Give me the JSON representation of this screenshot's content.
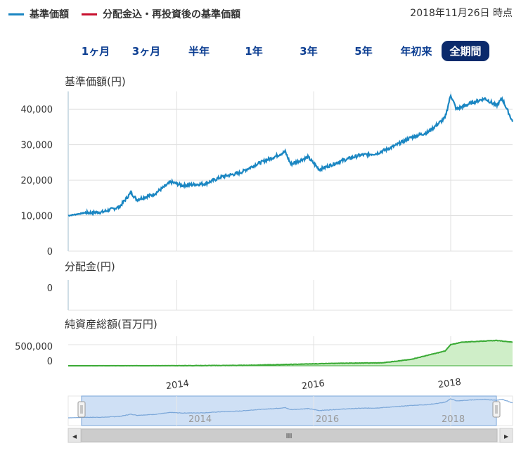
{
  "legend": {
    "series1": "基準価額",
    "series2": "分配金込・再投資後の基準価額",
    "colors": {
      "series1": "#1a86c2",
      "series2": "#c8102e"
    }
  },
  "as_of": "2018年11月26日 時点",
  "ranges": [
    {
      "label": "1ヶ月",
      "active": false
    },
    {
      "label": "3ヶ月",
      "active": false
    },
    {
      "label": "半年",
      "active": false
    },
    {
      "label": "1年",
      "active": false
    },
    {
      "label": "3年",
      "active": false
    },
    {
      "label": "5年",
      "active": false
    },
    {
      "label": "年初来",
      "active": false
    },
    {
      "label": "全期間",
      "active": true
    }
  ],
  "chart_data": [
    {
      "type": "line",
      "title": "基準価額(円)",
      "x_range": [
        "2012-06",
        "2018-11-26"
      ],
      "ylim": [
        0,
        45000
      ],
      "ytick_labels": [
        "0",
        "10,000",
        "20,000",
        "30,000",
        "40,000"
      ],
      "yticks": [
        0,
        10000,
        20000,
        30000,
        40000
      ],
      "x_gridlines": [
        "2014",
        "2016",
        "2018"
      ],
      "series": [
        {
          "name": "基準価額",
          "color": "#1a86c2",
          "points": [
            [
              "2012-06",
              10000
            ],
            [
              "2012-09",
              10800
            ],
            [
              "2012-12",
              11000
            ],
            [
              "2013-03",
              12500
            ],
            [
              "2013-05",
              16500
            ],
            [
              "2013-06",
              14500
            ],
            [
              "2013-09",
              16000
            ],
            [
              "2013-12",
              19500
            ],
            [
              "2014-02",
              18500
            ],
            [
              "2014-06",
              19000
            ],
            [
              "2014-09",
              21000
            ],
            [
              "2014-12",
              22000
            ],
            [
              "2015-03",
              24500
            ],
            [
              "2015-06",
              26500
            ],
            [
              "2015-08",
              28000
            ],
            [
              "2015-09",
              24500
            ],
            [
              "2015-12",
              26500
            ],
            [
              "2016-02",
              23000
            ],
            [
              "2016-06",
              25500
            ],
            [
              "2016-09",
              27000
            ],
            [
              "2016-12",
              27500
            ],
            [
              "2017-03",
              29500
            ],
            [
              "2017-06",
              32000
            ],
            [
              "2017-09",
              33500
            ],
            [
              "2017-12",
              37500
            ],
            [
              "2018-01",
              44000
            ],
            [
              "2018-02",
              40000
            ],
            [
              "2018-05",
              42000
            ],
            [
              "2018-07",
              43000
            ],
            [
              "2018-09",
              41000
            ],
            [
              "2018-10",
              43000
            ],
            [
              "2018-11-26",
              36500
            ]
          ]
        }
      ]
    },
    {
      "type": "line",
      "title": "分配金(円)",
      "ylim": [
        0,
        1
      ],
      "ytick_labels": [
        "0"
      ],
      "yticks": [
        0
      ],
      "series": [
        {
          "name": "分配金",
          "color": "#1a86c2",
          "points": []
        }
      ]
    },
    {
      "type": "area",
      "title": "純資産総額(百万円)",
      "ylim": [
        0,
        700000
      ],
      "ytick_labels": [
        "0",
        "500,000"
      ],
      "yticks": [
        0,
        500000
      ],
      "xtick_labels": [
        "2014",
        "2016",
        "2018"
      ],
      "series": [
        {
          "name": "純資産総額",
          "color": "#3aaa35",
          "points": [
            [
              "2012-06",
              0
            ],
            [
              "2014-01",
              2000
            ],
            [
              "2015-01",
              10000
            ],
            [
              "2015-06",
              25000
            ],
            [
              "2016-01",
              45000
            ],
            [
              "2016-06",
              60000
            ],
            [
              "2017-01",
              70000
            ],
            [
              "2017-06",
              150000
            ],
            [
              "2017-12",
              350000
            ],
            [
              "2018-01",
              500000
            ],
            [
              "2018-03",
              560000
            ],
            [
              "2018-06",
              580000
            ],
            [
              "2018-09",
              600000
            ],
            [
              "2018-11-26",
              560000
            ]
          ]
        }
      ]
    }
  ],
  "navigator": {
    "xtick_labels": [
      "2014",
      "2016",
      "2018"
    ],
    "scroll_left": "◂",
    "scroll_right": "▸",
    "handle_grip": "III"
  }
}
